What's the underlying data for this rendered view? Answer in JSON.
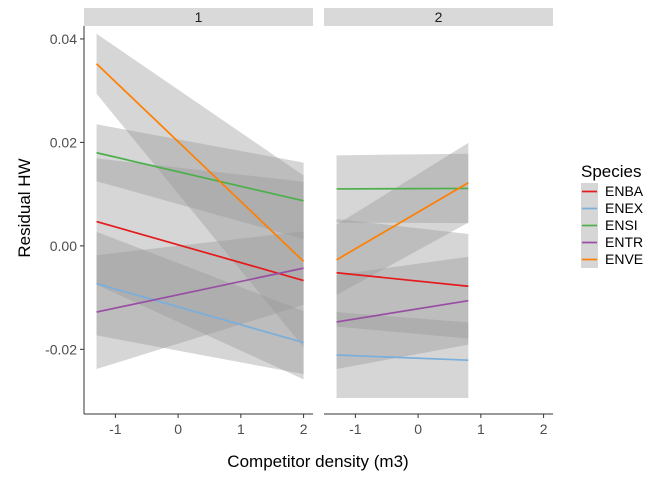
{
  "chart_data": {
    "type": "line",
    "xlabel": "Competitor density (m3)",
    "ylabel": "Residual HW",
    "xlim": [
      -1.5,
      2.15
    ],
    "ylim": [
      -0.0325,
      0.0425
    ],
    "x_ticks": [
      "-1",
      "0",
      "1",
      "2"
    ],
    "y_ticks": [
      "-0.02",
      "0.00",
      "0.02",
      "0.04"
    ],
    "grid": false,
    "ribbon_color": "#999999",
    "legend": {
      "title": "Species",
      "position": "right",
      "entries": [
        "ENBA",
        "ENEX",
        "ENSI",
        "ENTR",
        "ENVE"
      ]
    },
    "panels": [
      {
        "strip": "1",
        "x_range": [
          -1.3,
          2.0
        ],
        "series": [
          {
            "name": "ENBA",
            "color": "#e41a1c",
            "y": [
              0.0047,
              -0.0067
            ],
            "lo": [
              -0.0075,
              -0.0258
            ],
            "hi": [
              0.0169,
              0.0124
            ]
          },
          {
            "name": "ENEX",
            "color": "#7aaedb",
            "y": [
              -0.0073,
              -0.0187
            ],
            "lo": [
              -0.0173,
              -0.0248
            ],
            "hi": [
              0.0027,
              -0.0126
            ]
          },
          {
            "name": "ENSI",
            "color": "#4daf4a",
            "y": [
              0.018,
              0.0087
            ],
            "lo": [
              0.0125,
              0.0013
            ],
            "hi": [
              0.0235,
              0.0161
            ]
          },
          {
            "name": "ENTR",
            "color": "#984ea3",
            "y": [
              -0.0128,
              -0.0043
            ],
            "lo": [
              -0.0238,
              -0.0114
            ],
            "hi": [
              -0.0018,
              0.0028
            ]
          },
          {
            "name": "ENVE",
            "color": "#ff7f00",
            "y": [
              0.0352,
              -0.003
            ],
            "lo": [
              0.0294,
              -0.0196
            ],
            "hi": [
              0.041,
              0.0136
            ]
          }
        ]
      },
      {
        "strip": "2",
        "x_range": [
          -1.3,
          0.8
        ],
        "series": [
          {
            "name": "ENBA",
            "color": "#e41a1c",
            "y": [
              -0.0052,
              -0.0078
            ],
            "lo": [
              -0.0156,
              -0.0179
            ],
            "hi": [
              0.0052,
              0.0023
            ]
          },
          {
            "name": "ENEX",
            "color": "#7aaedb",
            "y": [
              -0.0211,
              -0.0221
            ],
            "lo": [
              -0.0294,
              -0.0294
            ],
            "hi": [
              -0.0128,
              -0.0148
            ]
          },
          {
            "name": "ENSI",
            "color": "#4daf4a",
            "y": [
              0.011,
              0.0111
            ],
            "lo": [
              0.0045,
              0.0044
            ],
            "hi": [
              0.0175,
              0.0178
            ]
          },
          {
            "name": "ENTR",
            "color": "#984ea3",
            "y": [
              -0.0147,
              -0.0106
            ],
            "lo": [
              -0.0238,
              -0.0191
            ],
            "hi": [
              -0.0056,
              -0.0021
            ]
          },
          {
            "name": "ENVE",
            "color": "#ff7f00",
            "y": [
              -0.0027,
              0.0122
            ],
            "lo": [
              -0.0095,
              0.0045
            ],
            "hi": [
              0.0041,
              0.0199
            ]
          }
        ]
      }
    ]
  }
}
